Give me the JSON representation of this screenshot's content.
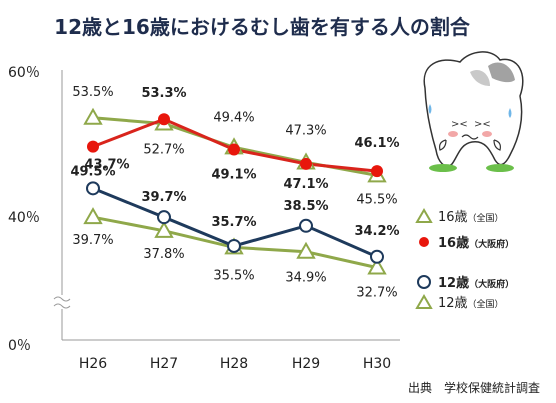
{
  "chart_data": {
    "type": "line",
    "title": "12歳と16歳におけるむし歯を有する人の割合",
    "categories": [
      "H26",
      "H27",
      "H28",
      "H29",
      "H30"
    ],
    "y_ticks": [
      "0％",
      "40％",
      "60％"
    ],
    "series": [
      {
        "name": "16歳",
        "note": "（全国）",
        "values": [
          53.5,
          52.7,
          49.4,
          47.3,
          45.5
        ],
        "labels": [
          "53.5%",
          "52.7%",
          "49.4%",
          "47.3%",
          "45.5%"
        ],
        "bold": false,
        "color": "#8fa84a",
        "marker": "triangle"
      },
      {
        "name": "16歳",
        "note": "（大阪府）",
        "values": [
          49.5,
          53.3,
          49.1,
          47.1,
          46.1
        ],
        "labels": [
          "49.5%",
          "53.3%",
          "49.1%",
          "47.1%",
          "46.1%"
        ],
        "bold": true,
        "color": "#d9241c",
        "marker": "dot"
      },
      {
        "name": "12歳",
        "note": "（大阪府）",
        "values": [
          43.7,
          39.7,
          35.7,
          38.5,
          34.2
        ],
        "labels": [
          "43.7%",
          "39.7%",
          "35.7%",
          "38.5%",
          "34.2%"
        ],
        "bold": true,
        "color": "#1e3a5c",
        "marker": "circle"
      },
      {
        "name": "12歳",
        "note": "（全国）",
        "values": [
          39.7,
          37.8,
          35.5,
          34.9,
          32.7
        ],
        "labels": [
          "39.7%",
          "37.8%",
          "35.5%",
          "34.9%",
          "32.7%"
        ],
        "bold": false,
        "color": "#8fa84a",
        "marker": "triangle"
      }
    ],
    "source": "出典　学校保健統計調査"
  }
}
